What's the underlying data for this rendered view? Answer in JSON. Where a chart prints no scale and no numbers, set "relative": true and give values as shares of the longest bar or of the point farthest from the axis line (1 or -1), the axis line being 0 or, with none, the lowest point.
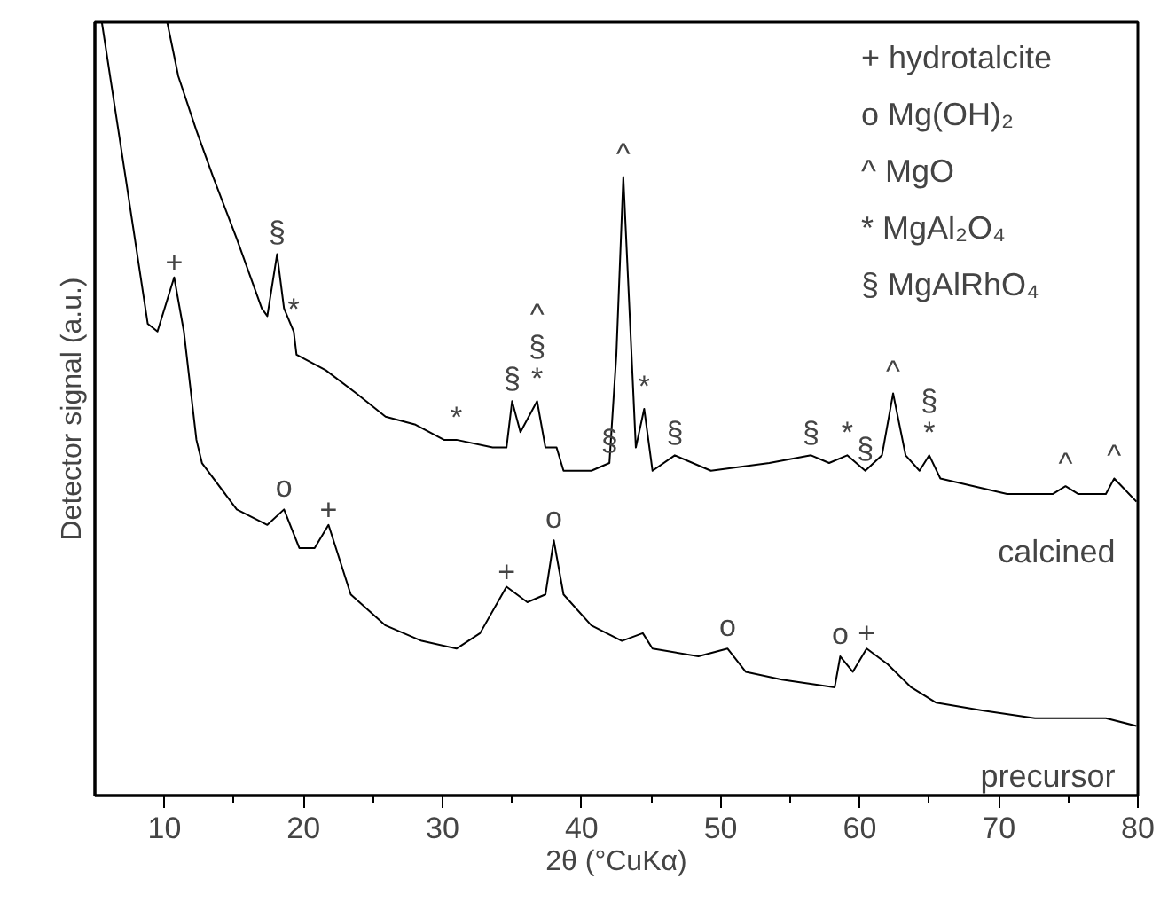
{
  "chart_data": {
    "type": "line",
    "relative": true,
    "xlabel": "2θ (°CuKα)",
    "ylabel": "Detector signal (a.u.)",
    "xlim": [
      5,
      80
    ],
    "xticks": [
      10,
      {
        "value": 15,
        "label": null
      },
      20,
      {
        "value": 25,
        "label": null
      },
      30,
      {
        "value": 35,
        "label": null
      },
      40,
      {
        "value": 45,
        "label": null
      },
      50,
      {
        "value": 55,
        "label": null
      },
      60,
      {
        "value": 65,
        "label": null
      },
      70,
      {
        "value": 75,
        "label": null
      },
      80
    ],
    "tick_labels": "x",
    "series": [
      {
        "name": "calcined",
        "color": "#000000",
        "x": [
          10.2,
          11.0,
          12.3,
          13.5,
          15.2,
          17.0,
          17.4,
          18.1,
          18.6,
          19.3,
          19.5,
          21.6,
          23.8,
          25.9,
          28.0,
          30.1,
          31.0,
          33.6,
          34.6,
          35.0,
          35.6,
          36.8,
          37.4,
          38.2,
          38.7,
          40.7,
          42.0,
          42.5,
          43.0,
          43.9,
          44.5,
          45.1,
          46.7,
          49.3,
          53.5,
          56.5,
          57.8,
          59.1,
          60.4,
          61.6,
          62.4,
          63.3,
          64.3,
          65.0,
          65.8,
          70.6,
          73.9,
          74.8,
          75.7,
          77.7,
          78.3,
          79.9
        ],
        "values": [
          1.0,
          0.93,
          0.86,
          0.8,
          0.72,
          0.63,
          0.62,
          0.7,
          0.63,
          0.6,
          0.57,
          0.55,
          0.52,
          0.49,
          0.48,
          0.46,
          0.46,
          0.45,
          0.45,
          0.51,
          0.47,
          0.51,
          0.45,
          0.45,
          0.42,
          0.42,
          0.43,
          0.57,
          0.8,
          0.45,
          0.5,
          0.42,
          0.44,
          0.42,
          0.43,
          0.44,
          0.43,
          0.44,
          0.42,
          0.44,
          0.52,
          0.44,
          0.42,
          0.44,
          0.41,
          0.39,
          0.39,
          0.4,
          0.39,
          0.39,
          0.41,
          0.38
        ]
      },
      {
        "name": "precursor",
        "color": "#000000",
        "x": [
          5.5,
          7.2,
          8.8,
          9.5,
          10.7,
          11.4,
          12.3,
          12.7,
          15.2,
          17.4,
          18.6,
          19.7,
          20.8,
          21.8,
          23.4,
          25.9,
          28.5,
          31.0,
          32.7,
          34.6,
          36.1,
          37.4,
          38.0,
          38.7,
          40.7,
          42.9,
          44.4,
          45.1,
          48.4,
          50.5,
          51.8,
          54.4,
          58.2,
          58.6,
          59.5,
          60.5,
          62.0,
          63.7,
          65.5,
          68.8,
          72.6,
          77.7,
          79.9
        ],
        "values": [
          1.0,
          0.8,
          0.61,
          0.6,
          0.67,
          0.6,
          0.46,
          0.43,
          0.37,
          0.35,
          0.37,
          0.32,
          0.32,
          0.35,
          0.26,
          0.22,
          0.2,
          0.19,
          0.21,
          0.27,
          0.25,
          0.26,
          0.33,
          0.26,
          0.22,
          0.2,
          0.21,
          0.19,
          0.18,
          0.19,
          0.16,
          0.15,
          0.14,
          0.18,
          0.16,
          0.19,
          0.17,
          0.14,
          0.12,
          0.11,
          0.1,
          0.1,
          0.09
        ]
      }
    ],
    "annotations": [
      "+ hydrotalcite",
      "o Mg(OH)₂",
      "^ MgO",
      "* MgAl₂O₄",
      "§ MgAlRhO₄",
      {
        "text": "§",
        "x": 18.1,
        "y": 0.7
      },
      {
        "text": "*",
        "x": 19.3,
        "y": 0.6
      },
      {
        "text": "*",
        "x": 31.0,
        "y": 0.46
      },
      {
        "text": "§",
        "x": 35.0,
        "y": 0.51
      },
      {
        "text": "*",
        "x": 36.8,
        "y": 0.51
      },
      {
        "text": "§",
        "x": 36.8,
        "y": 0.51
      },
      {
        "text": "^",
        "x": 36.8,
        "y": 0.51
      },
      {
        "text": "§",
        "x": 42.0,
        "y": 0.43
      },
      {
        "text": "^",
        "x": 43.0,
        "y": 0.8
      },
      {
        "text": "*",
        "x": 44.5,
        "y": 0.5
      },
      {
        "text": "§",
        "x": 46.7,
        "y": 0.44
      },
      {
        "text": "§",
        "x": 56.5,
        "y": 0.44
      },
      {
        "text": "*",
        "x": 59.1,
        "y": 0.44
      },
      {
        "text": "§",
        "x": 60.4,
        "y": 0.42
      },
      {
        "text": "^",
        "x": 62.4,
        "y": 0.52
      },
      {
        "text": "*",
        "x": 65.0,
        "y": 0.44
      },
      {
        "text": "§",
        "x": 65.0,
        "y": 0.44
      },
      {
        "text": "^",
        "x": 74.8,
        "y": 0.4
      },
      {
        "text": "^",
        "x": 78.3,
        "y": 0.41
      },
      {
        "text": "+",
        "x": 10.7,
        "y": 0.67
      },
      {
        "text": "o",
        "x": 18.6,
        "y": 0.37
      },
      {
        "text": "+",
        "x": 21.8,
        "y": 0.35
      },
      {
        "text": "+",
        "x": 34.6,
        "y": 0.27
      },
      {
        "text": "o",
        "x": 38.0,
        "y": 0.33
      },
      {
        "text": "o",
        "x": 50.5,
        "y": 0.19
      },
      {
        "text": "o",
        "x": 58.6,
        "y": 0.18
      },
      {
        "text": "+",
        "x": 60.5,
        "y": 0.19
      }
    ]
  }
}
